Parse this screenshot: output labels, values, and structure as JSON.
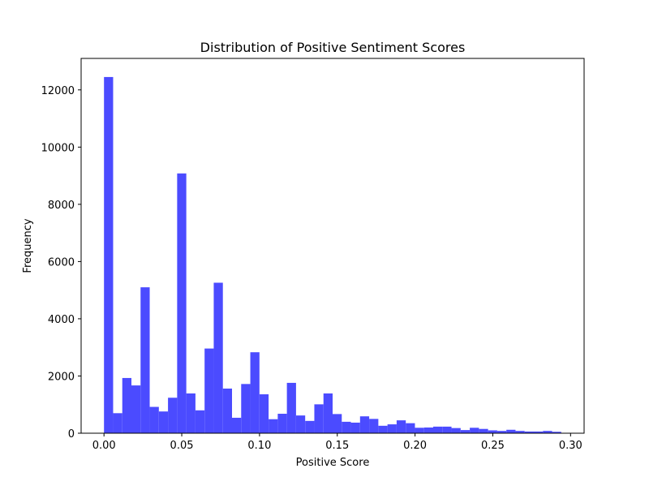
{
  "chart_data": {
    "type": "bar",
    "title": "Distribution of Positive Sentiment Scores",
    "xlabel": "Positive Score",
    "ylabel": "Frequency",
    "bar_color": "#4B4BFF",
    "xlim": [
      -0.0147,
      0.3087
    ],
    "ylim": [
      0,
      13100
    ],
    "xticks": [
      0.0,
      0.05,
      0.1,
      0.15,
      0.2,
      0.25,
      0.3
    ],
    "xtick_labels": [
      "0.00",
      "0.05",
      "0.10",
      "0.15",
      "0.20",
      "0.25",
      "0.30"
    ],
    "yticks": [
      0,
      2000,
      4000,
      6000,
      8000,
      10000,
      12000
    ],
    "ytick_labels": [
      "0",
      "2000",
      "4000",
      "6000",
      "8000",
      "10000",
      "12000"
    ],
    "bin_start": 0.0,
    "bin_end": 0.294,
    "values": [
      12450,
      700,
      1930,
      1670,
      5100,
      920,
      760,
      1240,
      9080,
      1390,
      800,
      2960,
      5260,
      1560,
      540,
      1720,
      2830,
      1360,
      490,
      680,
      1760,
      620,
      430,
      1010,
      1390,
      670,
      400,
      370,
      590,
      500,
      260,
      310,
      450,
      350,
      190,
      200,
      230,
      230,
      180,
      110,
      190,
      150,
      100,
      80,
      120,
      80,
      60,
      60,
      80,
      50
    ]
  }
}
